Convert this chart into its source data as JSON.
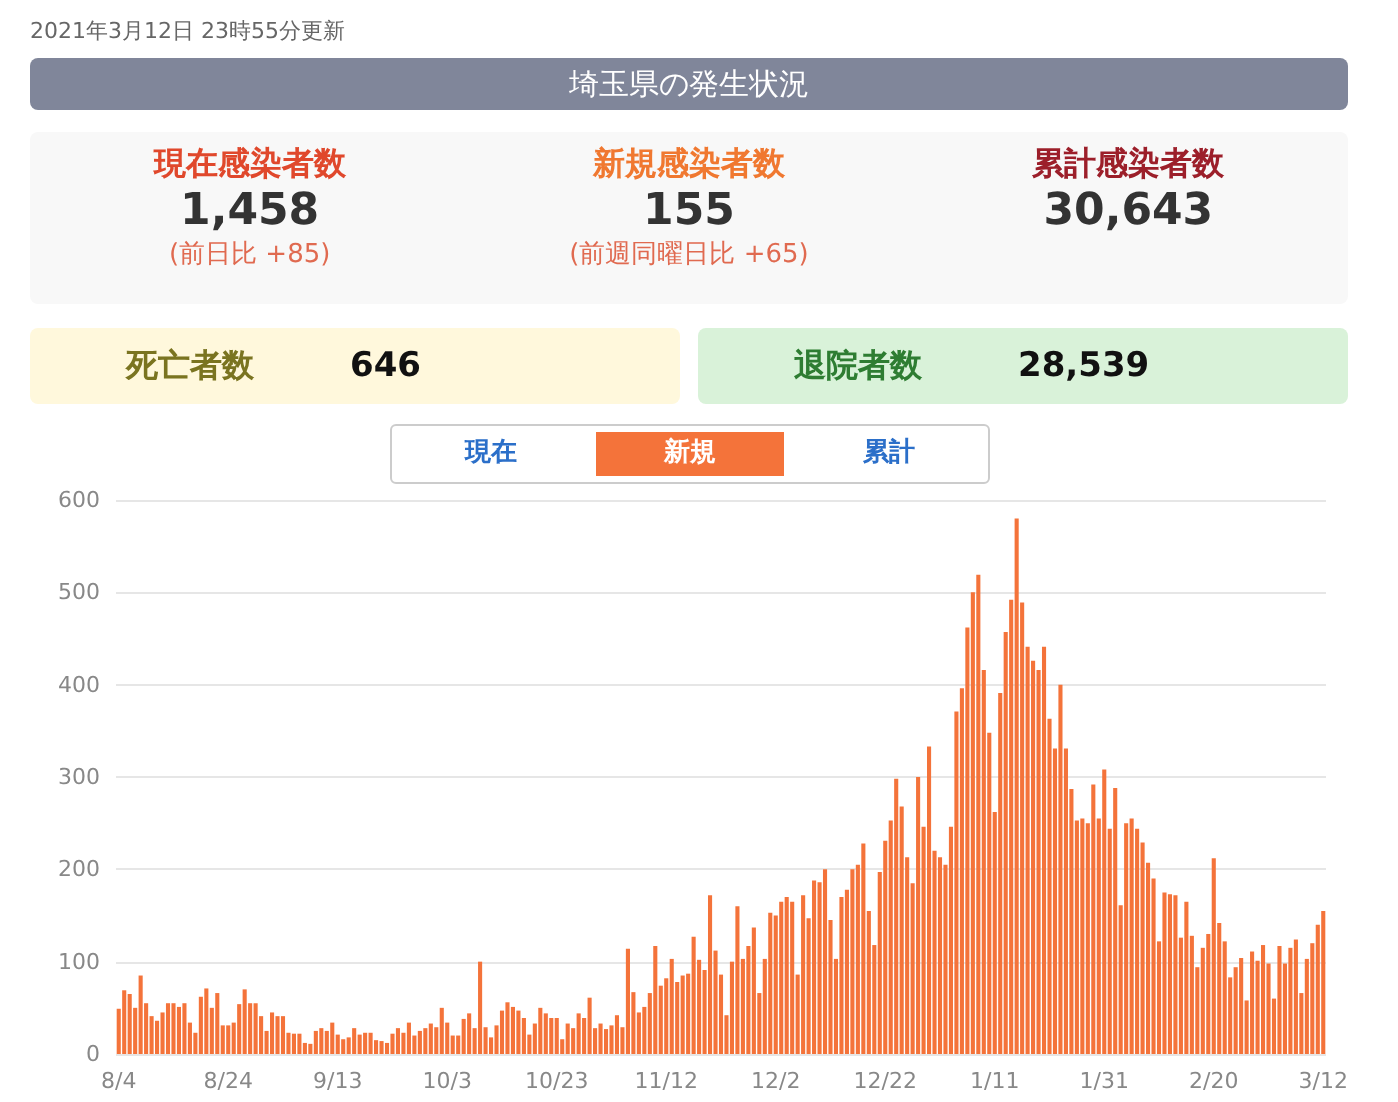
{
  "chart_data": [
    {
      "type": "other",
      "title": "埼玉県の発生状況",
      "annotations": [
        "2021年3月12日 23時55分更新",
        "現在感染者数",
        "1,458",
        "(前日比 +85)",
        "新規感染者数",
        "155",
        "(前週同曜日比 +65)",
        "累計感染者数",
        "30,643",
        "死亡者数",
        "646",
        "退院者数",
        "28,539"
      ]
    },
    {
      "type": "bar",
      "annotations": [
        "現在",
        "新規",
        "累計"
      ],
      "categories": [
        "8/4",
        null,
        null,
        null,
        null,
        null,
        null,
        null,
        null,
        null,
        null,
        null,
        null,
        null,
        null,
        null,
        null,
        null,
        null,
        null,
        "8/24",
        null,
        null,
        null,
        null,
        null,
        null,
        null,
        null,
        null,
        null,
        null,
        null,
        null,
        null,
        null,
        null,
        null,
        null,
        null,
        "9/13",
        null,
        null,
        null,
        null,
        null,
        null,
        null,
        null,
        null,
        null,
        null,
        null,
        null,
        null,
        null,
        null,
        null,
        null,
        null,
        "10/3",
        null,
        null,
        null,
        null,
        null,
        null,
        null,
        null,
        null,
        null,
        null,
        null,
        null,
        null,
        null,
        null,
        null,
        null,
        null,
        "10/23",
        null,
        null,
        null,
        null,
        null,
        null,
        null,
        null,
        null,
        null,
        null,
        null,
        null,
        null,
        null,
        null,
        null,
        null,
        null,
        "11/12",
        null,
        null,
        null,
        null,
        null,
        null,
        null,
        null,
        null,
        null,
        null,
        null,
        null,
        null,
        null,
        null,
        null,
        null,
        null,
        "12/2",
        null,
        null,
        null,
        null,
        null,
        null,
        null,
        null,
        null,
        null,
        null,
        null,
        null,
        null,
        null,
        null,
        null,
        null,
        null,
        "12/22",
        null,
        null,
        null,
        null,
        null,
        null,
        null,
        null,
        null,
        null,
        null,
        null,
        null,
        null,
        null,
        null,
        null,
        null,
        null,
        "1/11",
        null,
        null,
        null,
        null,
        null,
        null,
        null,
        null,
        null,
        null,
        null,
        null,
        null,
        null,
        null,
        null,
        null,
        null,
        null,
        "1/31",
        null,
        null,
        null,
        null,
        null,
        null,
        null,
        null,
        null,
        null,
        null,
        null,
        null,
        null,
        null,
        null,
        null,
        null,
        null,
        "2/20",
        null,
        null,
        null,
        null,
        null,
        null,
        null,
        null,
        null,
        null,
        null,
        null,
        null,
        null,
        null,
        null,
        null,
        null,
        null,
        "3/12"
      ],
      "values": [
        49,
        69,
        65,
        50,
        85,
        55,
        41,
        36,
        45,
        55,
        55,
        51,
        55,
        34,
        23,
        62,
        71,
        50,
        66,
        31,
        31,
        34,
        54,
        70,
        55,
        55,
        41,
        25,
        45,
        41,
        41,
        23,
        22,
        22,
        12,
        11,
        25,
        28,
        25,
        34,
        21,
        16,
        18,
        28,
        21,
        23,
        23,
        15,
        14,
        12,
        22,
        28,
        23,
        34,
        20,
        25,
        28,
        33,
        29,
        50,
        34,
        20,
        20,
        38,
        44,
        28,
        100,
        29,
        18,
        31,
        47,
        56,
        51,
        47,
        39,
        21,
        33,
        50,
        44,
        39,
        39,
        16,
        33,
        28,
        44,
        39,
        61,
        28,
        33,
        27,
        31,
        42,
        29,
        114,
        67,
        45,
        51,
        66,
        117,
        74,
        82,
        103,
        78,
        85,
        87,
        127,
        102,
        91,
        172,
        112,
        86,
        42,
        100,
        160,
        103,
        117,
        137,
        66,
        103,
        153,
        150,
        165,
        170,
        165,
        86,
        172,
        147,
        188,
        186,
        200,
        145,
        103,
        170,
        178,
        200,
        205,
        228,
        155,
        118,
        197,
        231,
        253,
        298,
        268,
        213,
        185,
        300,
        246,
        333,
        220,
        213,
        205,
        246,
        371,
        396,
        462,
        500,
        519,
        416,
        348,
        262,
        391,
        457,
        492,
        580,
        489,
        441,
        426,
        416,
        441,
        363,
        331,
        400,
        331,
        287,
        253,
        255,
        250,
        292,
        255,
        308,
        244,
        288,
        161,
        250,
        255,
        244,
        229,
        207,
        190,
        122,
        175,
        173,
        172,
        126,
        165,
        128,
        94,
        115,
        130,
        212,
        142,
        122,
        83,
        94,
        104,
        58,
        111,
        101,
        118,
        98,
        60,
        117,
        98,
        115,
        124,
        66,
        103,
        120,
        140,
        155
      ],
      "color": "#f4733a",
      "ylim": [
        0,
        600
      ],
      "yticks": [
        0,
        100,
        200,
        300,
        400,
        500,
        600
      ],
      "grid": "y"
    }
  ]
}
